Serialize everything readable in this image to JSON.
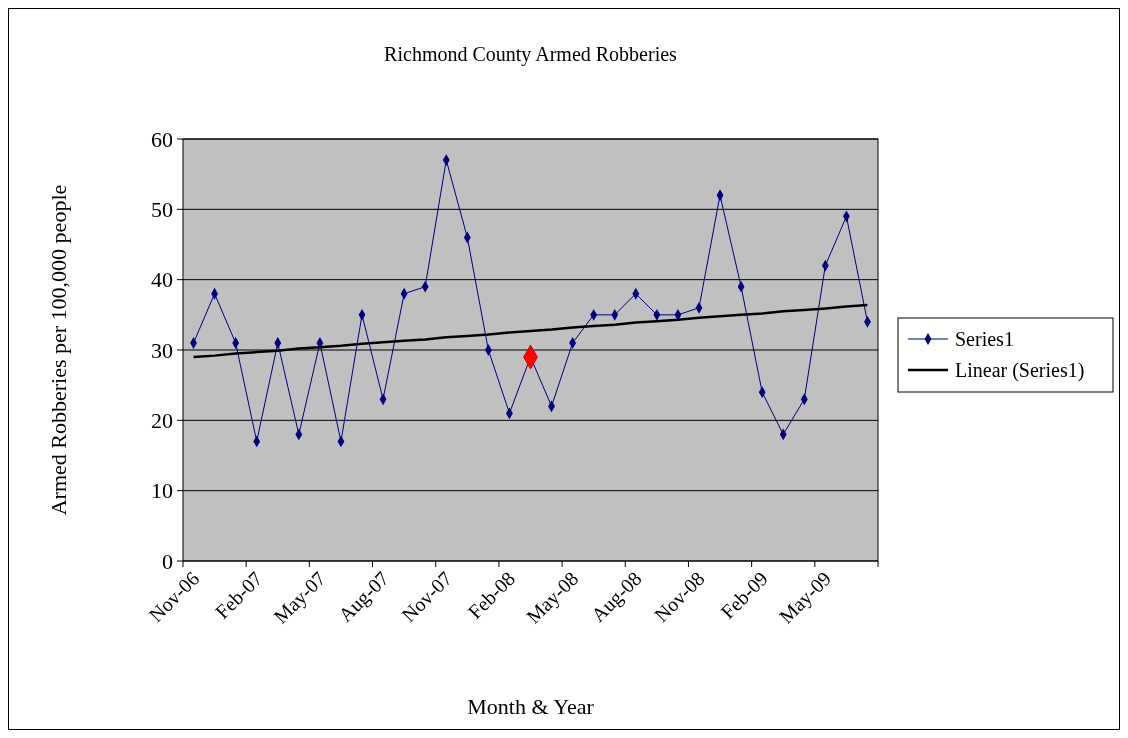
{
  "chart_data": {
    "type": "line",
    "title": "Richmond County Armed Robberies",
    "xlabel": "Month & Year",
    "ylabel": "Armed Robberies per 100,000 people",
    "categories": [
      "Nov-06",
      null,
      null,
      "Feb-07",
      null,
      null,
      "May-07",
      null,
      null,
      "Aug-07",
      null,
      null,
      "Nov-07",
      null,
      null,
      "Feb-08",
      null,
      null,
      "May-08",
      null,
      null,
      "Aug-08",
      null,
      null,
      "Nov-08",
      null,
      null,
      "Feb-09",
      null,
      null,
      "May-09",
      null,
      null
    ],
    "series": [
      {
        "name": "Series1",
        "color": "#000080",
        "colors": [
          "#000080",
          "#000080",
          "#000080",
          "#000080",
          "#000080",
          "#000080",
          "#000080",
          "#000080",
          "#000080",
          "#000080",
          "#000080",
          "#000080",
          "#000080",
          "#000080",
          "#000080",
          "#000080",
          "#ff0000",
          "#000080",
          "#000080",
          "#000080",
          "#000080",
          "#000080",
          "#000080",
          "#000080",
          "#000080",
          "#000080",
          "#000080",
          "#000080",
          "#000080",
          "#000080",
          "#000080",
          "#000080",
          "#000080"
        ],
        "values": [
          31,
          38,
          31,
          17,
          31,
          18,
          31,
          17,
          35,
          23,
          38,
          39,
          57,
          46,
          30,
          21,
          29,
          22,
          31,
          35,
          35,
          38,
          35,
          35,
          36,
          52,
          39,
          24,
          18,
          23,
          42,
          49,
          34
        ]
      },
      {
        "name": "Linear (Series1)",
        "type": "line",
        "color": "#000000",
        "marker": "none",
        "values": [
          29.0,
          29.2,
          29.5,
          29.7,
          29.9,
          30.2,
          30.4,
          30.6,
          30.9,
          31.1,
          31.3,
          31.5,
          31.8,
          32.0,
          32.2,
          32.5,
          32.7,
          32.9,
          33.2,
          33.4,
          33.6,
          33.9,
          34.1,
          34.3,
          34.6,
          34.8,
          35.0,
          35.2,
          35.5,
          35.7,
          35.9,
          36.2,
          36.4
        ]
      }
    ],
    "ylim": [
      0,
      60
    ],
    "yticks": [
      0,
      10,
      20,
      30,
      40,
      50,
      60
    ],
    "grid": "y",
    "legend": "right",
    "marker": "diamond"
  }
}
